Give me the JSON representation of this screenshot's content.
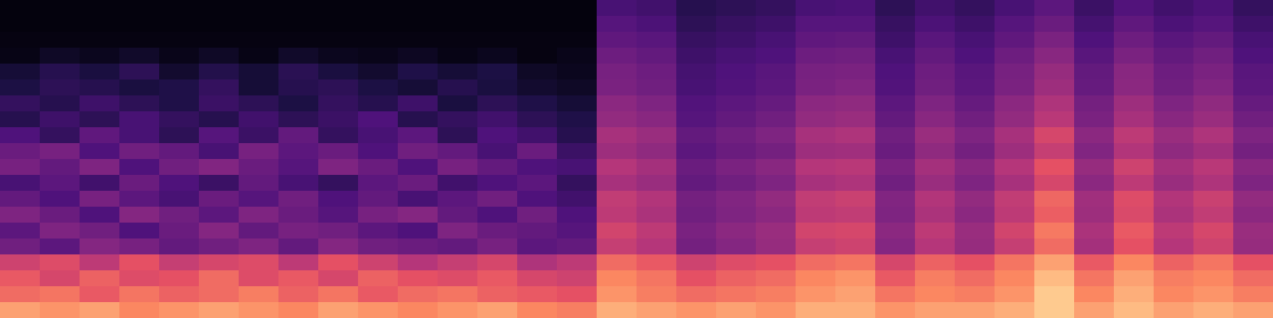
{
  "chart_data": {
    "type": "heatmap",
    "tick_labels": false,
    "zlim": [
      0,
      100
    ],
    "cells": [
      [
        2,
        2,
        2,
        2,
        2,
        2,
        2,
        2,
        2,
        2,
        2,
        2,
        2,
        2,
        2,
        28,
        26,
        18,
        20,
        22,
        28,
        29,
        20,
        26,
        22,
        28,
        34,
        24,
        31,
        26,
        29,
        22
      ],
      [
        2,
        2,
        2,
        2,
        2,
        2,
        2,
        2,
        2,
        2,
        2,
        2,
        2,
        2,
        2,
        32,
        29,
        20,
        23,
        25,
        32,
        32,
        23,
        29,
        25,
        32,
        38,
        27,
        35,
        29,
        32,
        25
      ],
      [
        3,
        3,
        3,
        3,
        3,
        3,
        3,
        3,
        3,
        3,
        3,
        3,
        3,
        3,
        3,
        35,
        33,
        23,
        25,
        28,
        35,
        36,
        25,
        33,
        28,
        35,
        43,
        30,
        39,
        33,
        36,
        28
      ],
      [
        4,
        8,
        6,
        9,
        5,
        8,
        4,
        9,
        6,
        5,
        7,
        4,
        6,
        3,
        5,
        39,
        36,
        25,
        28,
        30,
        39,
        40,
        28,
        36,
        30,
        39,
        47,
        33,
        43,
        36,
        40,
        30
      ],
      [
        12,
        18,
        14,
        20,
        10,
        17,
        12,
        19,
        14,
        10,
        16,
        12,
        15,
        8,
        6,
        42,
        39,
        27,
        30,
        33,
        42,
        43,
        30,
        39,
        33,
        42,
        51,
        36,
        47,
        39,
        43,
        33
      ],
      [
        15,
        20,
        18,
        14,
        16,
        22,
        12,
        18,
        20,
        15,
        12,
        18,
        14,
        10,
        8,
        43,
        40,
        28,
        31,
        34,
        43,
        45,
        31,
        40,
        34,
        43,
        53,
        37,
        48,
        40,
        45,
        34
      ],
      [
        22,
        18,
        25,
        20,
        16,
        24,
        20,
        15,
        22,
        18,
        25,
        14,
        20,
        16,
        12,
        48,
        44,
        31,
        34,
        37,
        48,
        49,
        34,
        44,
        37,
        48,
        58,
        41,
        53,
        44,
        49,
        37
      ],
      [
        18,
        25,
        20,
        28,
        22,
        18,
        26,
        20,
        24,
        30,
        18,
        22,
        26,
        20,
        16,
        50,
        47,
        32,
        36,
        40,
        50,
        52,
        36,
        47,
        40,
        50,
        61,
        43,
        56,
        47,
        52,
        40
      ],
      [
        30,
        22,
        35,
        28,
        20,
        32,
        24,
        36,
        22,
        28,
        34,
        20,
        30,
        26,
        18,
        56,
        52,
        36,
        40,
        44,
        56,
        58,
        40,
        52,
        44,
        56,
        68,
        48,
        62,
        52,
        58,
        44
      ],
      [
        38,
        42,
        30,
        40,
        36,
        28,
        42,
        34,
        38,
        30,
        40,
        36,
        28,
        38,
        24,
        53,
        49,
        34,
        38,
        41,
        53,
        54,
        38,
        49,
        41,
        53,
        64,
        45,
        59,
        49,
        54,
        41
      ],
      [
        42,
        36,
        44,
        30,
        40,
        45,
        38,
        32,
        44,
        38,
        30,
        42,
        36,
        30,
        28,
        60,
        55,
        38,
        43,
        47,
        60,
        61,
        43,
        55,
        47,
        60,
        72,
        51,
        66,
        55,
        61,
        47
      ],
      [
        28,
        34,
        26,
        38,
        30,
        24,
        36,
        28,
        22,
        34,
        38,
        26,
        30,
        34,
        22,
        56,
        52,
        36,
        40,
        44,
        56,
        58,
        40,
        52,
        44,
        56,
        68,
        48,
        62,
        52,
        58,
        44
      ],
      [
        36,
        30,
        42,
        34,
        28,
        38,
        32,
        40,
        30,
        36,
        28,
        34,
        40,
        30,
        26,
        63,
        59,
        41,
        45,
        50,
        63,
        65,
        45,
        59,
        50,
        63,
        77,
        54,
        70,
        59,
        65,
        50
      ],
      [
        44,
        38,
        30,
        46,
        40,
        34,
        44,
        38,
        32,
        42,
        46,
        36,
        30,
        40,
        30,
        62,
        57,
        40,
        44,
        48,
        62,
        63,
        44,
        57,
        48,
        62,
        75,
        53,
        69,
        57,
        63,
        48
      ],
      [
        34,
        44,
        40,
        30,
        38,
        46,
        36,
        42,
        40,
        34,
        30,
        44,
        38,
        36,
        32,
        67,
        62,
        43,
        48,
        52,
        67,
        68,
        48,
        62,
        52,
        67,
        81,
        57,
        74,
        62,
        68,
        52
      ],
      [
        40,
        34,
        46,
        42,
        36,
        40,
        44,
        36,
        46,
        40,
        38,
        36,
        42,
        34,
        36,
        64,
        60,
        41,
        46,
        51,
        64,
        66,
        46,
        60,
        51,
        64,
        78,
        55,
        72,
        60,
        66,
        51
      ],
      [
        66,
        70,
        62,
        72,
        64,
        68,
        70,
        62,
        72,
        66,
        60,
        64,
        68,
        58,
        62,
        78,
        74,
        66,
        70,
        72,
        78,
        80,
        68,
        76,
        72,
        80,
        88,
        74,
        84,
        76,
        80,
        72
      ],
      [
        74,
        68,
        76,
        70,
        72,
        78,
        70,
        74,
        68,
        76,
        72,
        70,
        74,
        68,
        66,
        84,
        80,
        72,
        76,
        78,
        84,
        86,
        74,
        82,
        78,
        84,
        92,
        80,
        88,
        82,
        84,
        78
      ],
      [
        78,
        80,
        74,
        80,
        76,
        78,
        82,
        76,
        80,
        74,
        78,
        80,
        76,
        74,
        72,
        86,
        82,
        78,
        80,
        82,
        86,
        88,
        80,
        84,
        82,
        86,
        94,
        84,
        90,
        84,
        86,
        82
      ],
      [
        88,
        86,
        88,
        84,
        86,
        88,
        86,
        84,
        88,
        86,
        84,
        86,
        88,
        84,
        82,
        90,
        88,
        86,
        88,
        86,
        90,
        90,
        86,
        88,
        88,
        90,
        94,
        88,
        92,
        88,
        90,
        88
      ]
    ]
  }
}
